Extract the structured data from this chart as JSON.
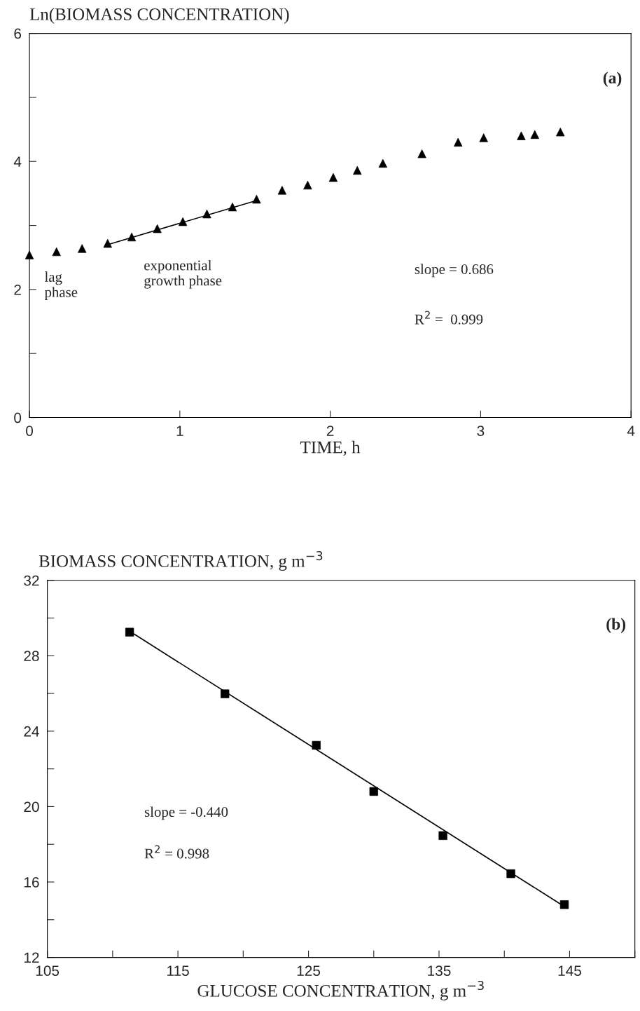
{
  "chart_data": [
    {
      "type": "scatter",
      "xlabel": "TIME, h",
      "ylabel": "Ln(BIOMASS CONCENTRATION)",
      "xlim": [
        0,
        4
      ],
      "xticks": [
        0,
        1,
        2,
        3,
        4
      ],
      "ylim": [
        0,
        6
      ],
      "yticks": [
        0,
        {
          "value": 1,
          "label": null
        },
        2,
        {
          "value": 3,
          "label": null
        },
        4,
        {
          "value": 5,
          "label": null
        },
        6
      ],
      "annotations": [
        "(a)",
        "lag\nphase",
        "exponential\ngrowth phase",
        "slope = 0.686",
        "R$^{2}$ =  0.999"
      ],
      "series": [
        {
          "type": "scatter",
          "marker": "triangle",
          "color": "#000000",
          "x": [
            0.0,
            0.18,
            0.35,
            0.52,
            0.68,
            0.85,
            1.02,
            1.18,
            1.35,
            1.51,
            1.68,
            1.85,
            2.02,
            2.18,
            2.35,
            2.61,
            2.85,
            3.02,
            3.27,
            3.36,
            3.53
          ],
          "values": [
            2.54,
            2.59,
            2.64,
            2.72,
            2.82,
            2.95,
            3.06,
            3.18,
            3.29,
            3.41,
            3.55,
            3.63,
            3.75,
            3.86,
            3.97,
            4.12,
            4.3,
            4.37,
            4.4,
            4.42,
            4.46
          ]
        },
        {
          "type": "line",
          "line_style": "solid",
          "color": "#000000",
          "x": [
            0.52,
            1.51
          ],
          "values": [
            2.7,
            3.39
          ]
        }
      ]
    },
    {
      "type": "scatter",
      "xlabel": "GLUCOSE CONCENTRATION, g m$^{−3}$",
      "ylabel": "BIOMASS CONCENTRATION, g m$^{−3}$",
      "xlim": [
        105,
        150
      ],
      "xticks": [
        105,
        {
          "value": 110,
          "label": null
        },
        115,
        {
          "value": 120,
          "label": null
        },
        125,
        {
          "value": 130,
          "label": null
        },
        135,
        {
          "value": 140,
          "label": null
        },
        145,
        {
          "value": 150,
          "label": null
        }
      ],
      "ylim": [
        12,
        32
      ],
      "yticks": [
        12,
        {
          "value": 14,
          "label": null
        },
        16,
        {
          "value": 18,
          "label": null
        },
        20,
        {
          "value": 22,
          "label": null
        },
        24,
        {
          "value": 26,
          "label": null
        },
        28,
        {
          "value": 30,
          "label": null
        },
        32
      ],
      "annotations": [
        "(b)",
        "slope = -0.440",
        "R$^{2}$ = 0.998"
      ],
      "series": [
        {
          "type": "scatter",
          "marker": "square",
          "color": "#000000",
          "x": [
            111.3,
            118.6,
            125.6,
            130.0,
            135.3,
            140.5,
            144.6
          ],
          "values": [
            29.25,
            25.98,
            23.25,
            20.8,
            18.46,
            16.44,
            14.8
          ]
        },
        {
          "type": "line",
          "line_style": "solid",
          "color": "#000000",
          "x": [
            111.3,
            144.6
          ],
          "values": [
            29.3,
            14.7
          ]
        }
      ]
    }
  ]
}
